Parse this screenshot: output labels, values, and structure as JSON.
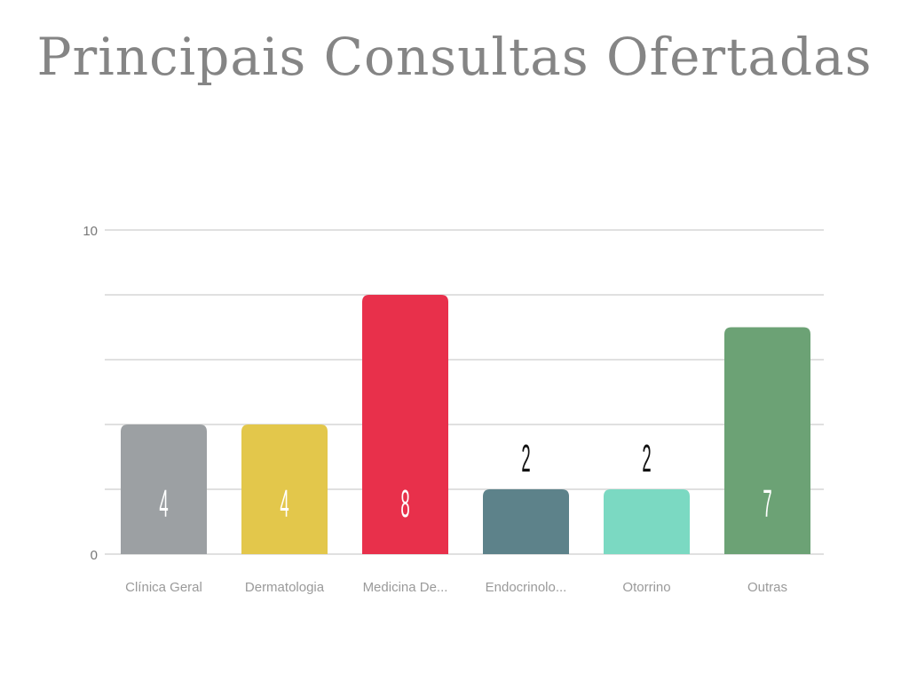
{
  "chart_data": {
    "type": "bar",
    "title": "Principais Consultas Ofertadas",
    "categories": [
      "Clínica Geral",
      "Dermatologia",
      "Medicina De...",
      "Endocrinolo...",
      "Otorrino",
      "Outras"
    ],
    "values": [
      4,
      4,
      8,
      2,
      2,
      7
    ],
    "colors": [
      "#9ca0a3",
      "#e3c74b",
      "#e8304b",
      "#5d828a",
      "#7bd9c2",
      "#6ca275"
    ],
    "ylim": [
      0,
      10
    ],
    "gridlines": [
      0,
      2,
      4,
      6,
      8,
      10
    ],
    "yticks": [
      "0",
      "10"
    ],
    "xlabel": "",
    "ylabel": "",
    "grid": true,
    "legend": "none"
  }
}
